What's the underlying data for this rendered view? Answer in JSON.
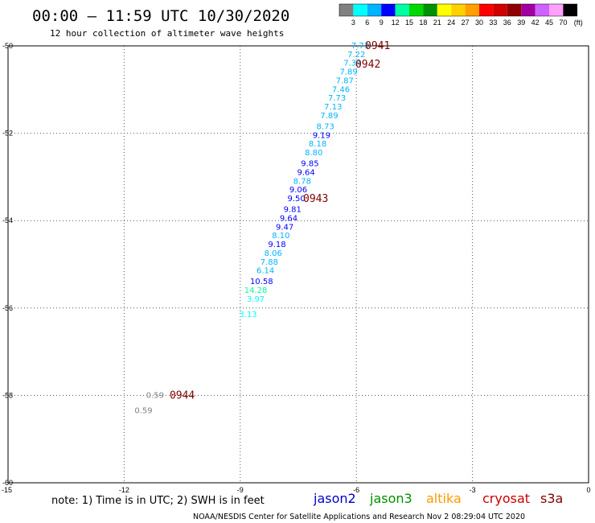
{
  "header": {
    "title": "00:00 – 11:59 UTC 10/30/2020",
    "subtitle": "12 hour collection of altimeter wave heights"
  },
  "color_scale": {
    "labels": [
      "3",
      "6",
      "9",
      "12",
      "15",
      "18",
      "21",
      "24",
      "27",
      "30",
      "33",
      "36",
      "39",
      "42",
      "45",
      "70"
    ],
    "unit": "(ft)",
    "colors": [
      "#808080",
      "#00ffff",
      "#00b4ff",
      "#0000ff",
      "#00ffa0",
      "#00d800",
      "#009000",
      "#ffff00",
      "#ffd000",
      "#ffa000",
      "#ff0000",
      "#d00000",
      "#900000",
      "#a000a0",
      "#d060ff",
      "#ffa0ff",
      "#000000"
    ]
  },
  "footer": {
    "note": "note:  1) Time is in UTC;  2) SWH is in feet",
    "credit": "NOAA/NESDIS Center for Satellite Applications and Research     Nov  2 08:29:04 UTC 2020"
  },
  "legend": [
    {
      "name": "jason2",
      "color": "#0000cc"
    },
    {
      "name": "jason3",
      "color": "#009000"
    },
    {
      "name": "altika",
      "color": "#ff9900"
    },
    {
      "name": "cryosat",
      "color": "#cc0000"
    },
    {
      "name": "s3a",
      "color": "#800000"
    }
  ],
  "chart_data": {
    "type": "scatter",
    "xlim": [
      -15,
      0
    ],
    "ylim": [
      -60,
      -50
    ],
    "xticks": [
      -15,
      -12,
      -9,
      -6,
      -3,
      0
    ],
    "yticks": [
      -50,
      -52,
      -54,
      -56,
      -58,
      -60
    ],
    "xtick_labels": [
      "-15",
      "-12",
      "-9",
      "-6",
      "-3",
      "0"
    ],
    "ytick_labels": [
      "-50",
      "-52",
      "-54",
      "-56",
      "-58",
      "-60"
    ],
    "grid": true,
    "points": [
      {
        "x": -5.9,
        "y": -50.0,
        "label": "7.73",
        "color": "#00b4ff"
      },
      {
        "x": -6.0,
        "y": -50.2,
        "label": "7.22",
        "color": "#00b4ff"
      },
      {
        "x": -6.1,
        "y": -50.4,
        "label": "7.34",
        "color": "#00b4ff"
      },
      {
        "x": -6.2,
        "y": -50.6,
        "label": "7.89",
        "color": "#00b4ff"
      },
      {
        "x": -6.3,
        "y": -50.8,
        "label": "7.87",
        "color": "#00b4ff"
      },
      {
        "x": -6.4,
        "y": -51.0,
        "label": "7.46",
        "color": "#00b4ff"
      },
      {
        "x": -6.5,
        "y": -51.2,
        "label": "7.73",
        "color": "#00b4ff"
      },
      {
        "x": -6.6,
        "y": -51.4,
        "label": "7.13",
        "color": "#00b4ff"
      },
      {
        "x": -6.7,
        "y": -51.6,
        "label": "7.89",
        "color": "#00b4ff"
      },
      {
        "x": -6.8,
        "y": -51.85,
        "label": "8.73",
        "color": "#00b4ff"
      },
      {
        "x": -6.9,
        "y": -52.05,
        "label": "9.19",
        "color": "#0000ff"
      },
      {
        "x": -7.0,
        "y": -52.25,
        "label": "8.18",
        "color": "#00b4ff"
      },
      {
        "x": -7.1,
        "y": -52.45,
        "label": "8.80",
        "color": "#00b4ff"
      },
      {
        "x": -7.2,
        "y": -52.7,
        "label": "9.85",
        "color": "#0000ff"
      },
      {
        "x": -7.3,
        "y": -52.9,
        "label": "9.64",
        "color": "#0000ff"
      },
      {
        "x": -7.4,
        "y": -53.1,
        "label": "8.78",
        "color": "#00b4ff"
      },
      {
        "x": -7.5,
        "y": -53.3,
        "label": "9.06",
        "color": "#0000ff"
      },
      {
        "x": -7.55,
        "y": -53.5,
        "label": "9.50",
        "color": "#0000ff"
      },
      {
        "x": -7.65,
        "y": -53.75,
        "label": "9.81",
        "color": "#0000ff"
      },
      {
        "x": -7.75,
        "y": -53.95,
        "label": "9.64",
        "color": "#0000ff"
      },
      {
        "x": -7.85,
        "y": -54.15,
        "label": "9.47",
        "color": "#0000ff"
      },
      {
        "x": -7.95,
        "y": -54.35,
        "label": "8.10",
        "color": "#00b4ff"
      },
      {
        "x": -8.05,
        "y": -54.55,
        "label": "9.18",
        "color": "#0000ff"
      },
      {
        "x": -8.15,
        "y": -54.75,
        "label": "8.06",
        "color": "#00b4ff"
      },
      {
        "x": -8.25,
        "y": -54.95,
        "label": "7.88",
        "color": "#00b4ff"
      },
      {
        "x": -8.35,
        "y": -55.15,
        "label": "6.14",
        "color": "#00b4ff"
      },
      {
        "x": -8.45,
        "y": -55.4,
        "label": "10.58",
        "color": "#0000ff"
      },
      {
        "x": -8.6,
        "y": -55.6,
        "label": "14.28",
        "color": "#00ffa0"
      },
      {
        "x": -8.6,
        "y": -55.8,
        "label": "3.97",
        "color": "#00ffff"
      },
      {
        "x": -8.8,
        "y": -56.15,
        "label": "3.13",
        "color": "#00ffff"
      },
      {
        "x": -11.2,
        "y": -58.0,
        "label": "0.59",
        "color": "#808080"
      },
      {
        "x": -11.5,
        "y": -58.35,
        "label": "0.59",
        "color": "#808080"
      }
    ],
    "pass_labels": [
      {
        "x": -5.45,
        "y": -50.0,
        "label": "0941"
      },
      {
        "x": -5.7,
        "y": -50.42,
        "label": "0942"
      },
      {
        "x": -7.05,
        "y": -53.5,
        "label": "0943"
      },
      {
        "x": -10.5,
        "y": -58.0,
        "label": "0944"
      }
    ]
  }
}
